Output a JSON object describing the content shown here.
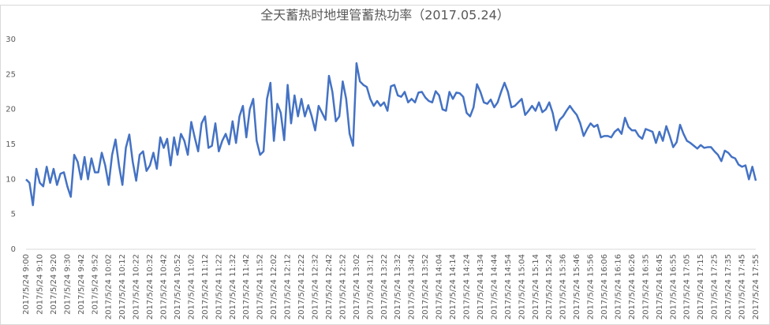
{
  "chart_data": {
    "type": "line",
    "title": "全天蓄热时地埋管蓄热功率（2017.05.24）",
    "categories": [
      "2017/5/24 9:00",
      null,
      null,
      null,
      "2017/5/24 9:10",
      null,
      null,
      null,
      "2017/5/24 9:20",
      null,
      null,
      null,
      "2017/5/24 9:30",
      null,
      null,
      null,
      "2017/5/24 9:42",
      null,
      null,
      null,
      "2017/5/24 9:52",
      null,
      null,
      null,
      "2017/5/24 10:02",
      null,
      null,
      null,
      "2017/5/24 10:12",
      null,
      null,
      null,
      "2017/5/24 10:22",
      null,
      null,
      null,
      "2017/5/24 10:32",
      null,
      null,
      null,
      "2017/5/24 10:42",
      null,
      null,
      null,
      "2017/5/24 10:52",
      null,
      null,
      null,
      "2017/5/24 11:02",
      null,
      null,
      null,
      "2017/5/24 11:12",
      null,
      null,
      null,
      "2017/5/24 11:22",
      null,
      null,
      null,
      "2017/5/24 11:32",
      null,
      null,
      null,
      "2017/5/24 11:42",
      null,
      null,
      null,
      "2017/5/24 11:52",
      null,
      null,
      null,
      "2017/5/24 12:02",
      null,
      null,
      null,
      "2017/5/24 12:12",
      null,
      null,
      null,
      "2017/5/24 12:22",
      null,
      null,
      null,
      "2017/5/24 12:32",
      null,
      null,
      null,
      "2017/5/24 12:42",
      null,
      null,
      null,
      "2017/5/24 12:52",
      null,
      null,
      null,
      "2017/5/24 13:02",
      null,
      null,
      null,
      "2017/5/24 13:12",
      null,
      null,
      null,
      "2017/5/24 13:22",
      null,
      null,
      null,
      "2017/5/24 13:32",
      null,
      null,
      null,
      "2017/5/24 13:42",
      null,
      null,
      null,
      "2017/5/24 13:52",
      null,
      null,
      null,
      "2017/5/24 14:04",
      null,
      null,
      null,
      "2017/5/24 14:14",
      null,
      null,
      null,
      "2017/5/24 14:24",
      null,
      null,
      null,
      "2017/5/24 14:34",
      null,
      null,
      null,
      "2017/5/24 14:44",
      null,
      null,
      null,
      "2017/5/24 14:54",
      null,
      null,
      null,
      "2017/5/24 15:04",
      null,
      null,
      null,
      "2017/5/24 15:14",
      null,
      null,
      null,
      "2017/5/24 15:24",
      null,
      null,
      null,
      "2017/5/24 15:36",
      null,
      null,
      null,
      "2017/5/24 15:46",
      null,
      null,
      null,
      "2017/5/24 15:56",
      null,
      null,
      null,
      "2017/5/24 16:06",
      null,
      null,
      null,
      "2017/5/24 16:16",
      null,
      null,
      null,
      "2017/5/24 16:26",
      null,
      null,
      null,
      "2017/5/24 16:35",
      null,
      null,
      null,
      "2017/5/24 16:45",
      null,
      null,
      null,
      "2017/5/24 16:55",
      null,
      null,
      null,
      "2017/5/24 17:05",
      null,
      null,
      null,
      "2017/5/24 17:15",
      null,
      null,
      null,
      "2017/5/24 17:25",
      null,
      null,
      null,
      "2017/5/24 17:35",
      null,
      null,
      null,
      "2017/5/24 17:45",
      null,
      null,
      null,
      "2017/5/24 17:55"
    ],
    "values": [
      10,
      9.5,
      6.3,
      11.5,
      9.5,
      9,
      11.8,
      9.5,
      11.5,
      9.2,
      10.8,
      11,
      9,
      7.5,
      13.5,
      12.5,
      10,
      13.2,
      10,
      13,
      11,
      11,
      13.8,
      12,
      9.2,
      13.5,
      15.7,
      12,
      9.2,
      14.5,
      16.4,
      12.5,
      9.8,
      13.5,
      14,
      11.2,
      12,
      13.8,
      11.5,
      16,
      14.5,
      15.8,
      12,
      16,
      13.5,
      16.5,
      15.5,
      13.5,
      18.2,
      16,
      14,
      18,
      19,
      14.5,
      14.8,
      18,
      14,
      15.5,
      16.5,
      15,
      18.3,
      15.2,
      19,
      20.5,
      16,
      20,
      21.5,
      15.5,
      13.5,
      14,
      21.5,
      23.8,
      15.5,
      20.8,
      19.5,
      15.6,
      23.5,
      18,
      22,
      19,
      21.5,
      19,
      20.6,
      19,
      17,
      20.5,
      19.5,
      18.5,
      24.8,
      22.5,
      18.3,
      19,
      24,
      21.5,
      16.5,
      14.8,
      26.6,
      24,
      23.5,
      23.2,
      21.5,
      20.5,
      21.2,
      20.5,
      21,
      19.8,
      23.3,
      23.5,
      22,
      21.8,
      22.5,
      21,
      21.5,
      21,
      22.4,
      22.5,
      21.7,
      21.2,
      21,
      22.6,
      22,
      20,
      19.8,
      22.5,
      21.5,
      22.4,
      22.3,
      21.8,
      19.5,
      19,
      20.3,
      23.6,
      22.5,
      21,
      20.8,
      21.4,
      20.3,
      21,
      22.5,
      23.8,
      22.5,
      20.3,
      20.5,
      21,
      21.5,
      19.2,
      19.8,
      20.5,
      19.8,
      21,
      19.6,
      20,
      21,
      19.5,
      17,
      18.5,
      19,
      19.8,
      20.5,
      19.8,
      19.2,
      18,
      16.2,
      17.2,
      18,
      17.5,
      17.8,
      16,
      16.2,
      16.2,
      16,
      16.8,
      17.2,
      16.5,
      18.8,
      17.5,
      17,
      17,
      16.2,
      15.8,
      17.2,
      17,
      16.8,
      15.2,
      16.8,
      15.5,
      17.6,
      16.2,
      14.6,
      15.3,
      17.8,
      16.5,
      15.5,
      15.2,
      14.8,
      14.4,
      14.9,
      14.5,
      14.6,
      14.6,
      14,
      13.5,
      12.6,
      14.1,
      13.8,
      13.2,
      13,
      12.1,
      11.8,
      12,
      10,
      11.8,
      9.8
    ],
    "color": "#4472c4",
    "ylim": [
      0,
      30
    ],
    "yticks": [
      0,
      5,
      10,
      15,
      20,
      25,
      30
    ],
    "grid": false
  }
}
